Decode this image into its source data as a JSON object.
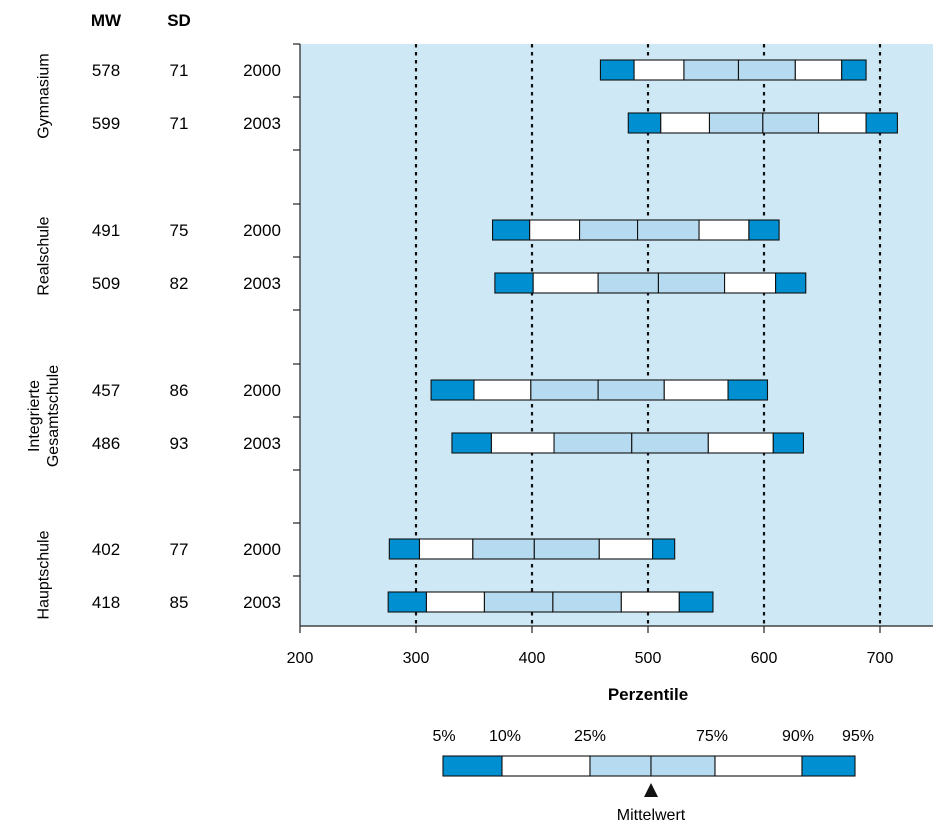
{
  "chart_data": {
    "type": "boxplot",
    "headers": {
      "mw": "MW",
      "sd": "SD"
    },
    "xlim": [
      200,
      745
    ],
    "x_ticks": [
      "200",
      "300",
      "400",
      "500",
      "600",
      "700"
    ],
    "gridlines": [
      300,
      400,
      500,
      600,
      700
    ],
    "xlabel": "Perzentile",
    "colors": {
      "plot_bg": "#cfe8f6",
      "outer": "#0090d1",
      "inner": "#b6dbf0",
      "white": "#ffffff"
    },
    "groups": [
      {
        "label_lines": [
          "Gymnasium"
        ],
        "rows": [
          {
            "year": "2000",
            "mw": "578",
            "sd": "71",
            "p": [
              459,
              488,
              531,
              578,
              627,
              667,
              688
            ]
          },
          {
            "year": "2003",
            "mw": "599",
            "sd": "71",
            "p": [
              483,
              511,
              553,
              599,
              647,
              688,
              715
            ]
          }
        ]
      },
      {
        "label_lines": [
          "Realschule"
        ],
        "rows": [
          {
            "year": "2000",
            "mw": "491",
            "sd": "75",
            "p": [
              366,
              398,
              441,
              491,
              544,
              587,
              613
            ]
          },
          {
            "year": "2003",
            "mw": "509",
            "sd": "82",
            "p": [
              368,
              401,
              457,
              509,
              566,
              610,
              636
            ]
          }
        ]
      },
      {
        "label_lines": [
          "Integrierte",
          "Gesamtschule"
        ],
        "rows": [
          {
            "year": "2000",
            "mw": "457",
            "sd": "86",
            "p": [
              313,
              350,
              399,
              457,
              514,
              569,
              603
            ]
          },
          {
            "year": "2003",
            "mw": "486",
            "sd": "93",
            "p": [
              331,
              365,
              419,
              486,
              552,
              608,
              634
            ]
          }
        ]
      },
      {
        "label_lines": [
          "Hauptschule"
        ],
        "rows": [
          {
            "year": "2000",
            "mw": "402",
            "sd": "77",
            "p": [
              277,
              303,
              349,
              402,
              458,
              504,
              523
            ]
          },
          {
            "year": "2003",
            "mw": "418",
            "sd": "85",
            "p": [
              276,
              309,
              359,
              418,
              477,
              527,
              556
            ]
          }
        ]
      }
    ],
    "legend": {
      "labels": [
        "5%",
        "10%",
        "25%",
        "75%",
        "90%",
        "95%"
      ],
      "mean_label": "Mittelwert"
    }
  }
}
